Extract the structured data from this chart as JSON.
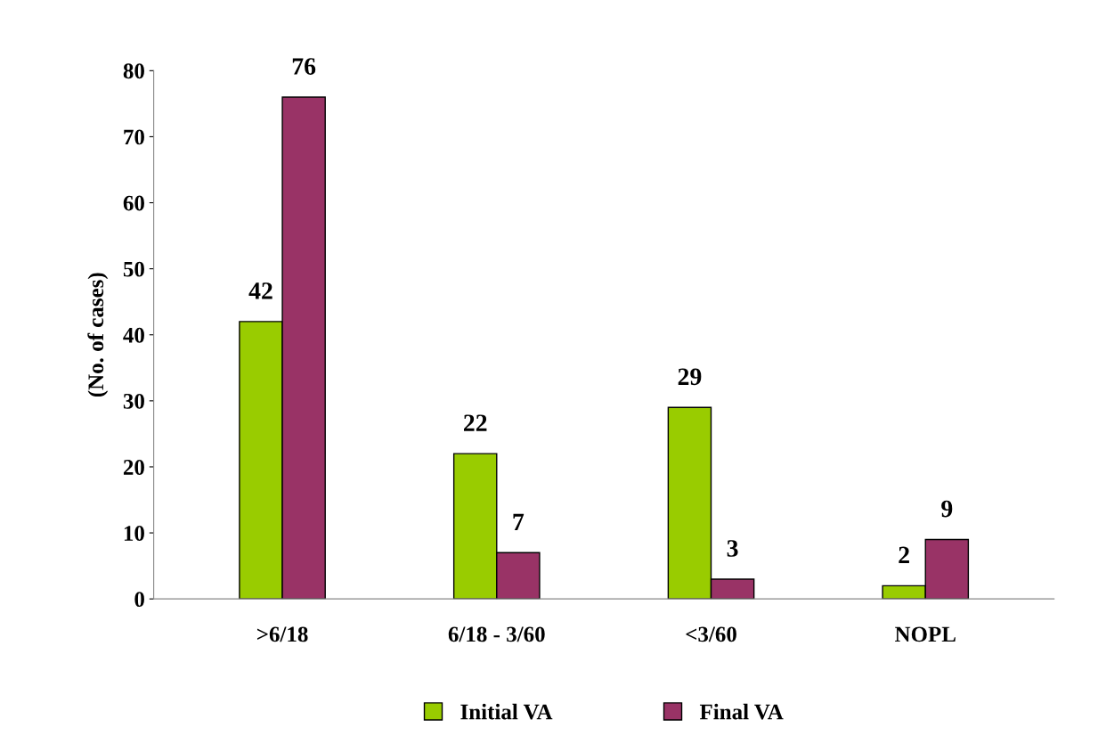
{
  "chart_data": {
    "type": "bar",
    "ylabel": "(No. of cases)",
    "categories": [
      ">6/18",
      "6/18 - 3/60",
      "<3/60",
      "NOPL"
    ],
    "series": [
      {
        "name": "Initial VA",
        "color": "#99cc00",
        "values": [
          42,
          22,
          29,
          2
        ]
      },
      {
        "name": "Final VA",
        "color": "#993366",
        "values": [
          76,
          7,
          3,
          9
        ]
      }
    ],
    "ylim": [
      0,
      80
    ],
    "yticks": [
      0,
      10,
      20,
      30,
      40,
      50,
      60,
      70,
      80
    ],
    "data_labels": true,
    "legend": "bottom",
    "grid": false
  }
}
